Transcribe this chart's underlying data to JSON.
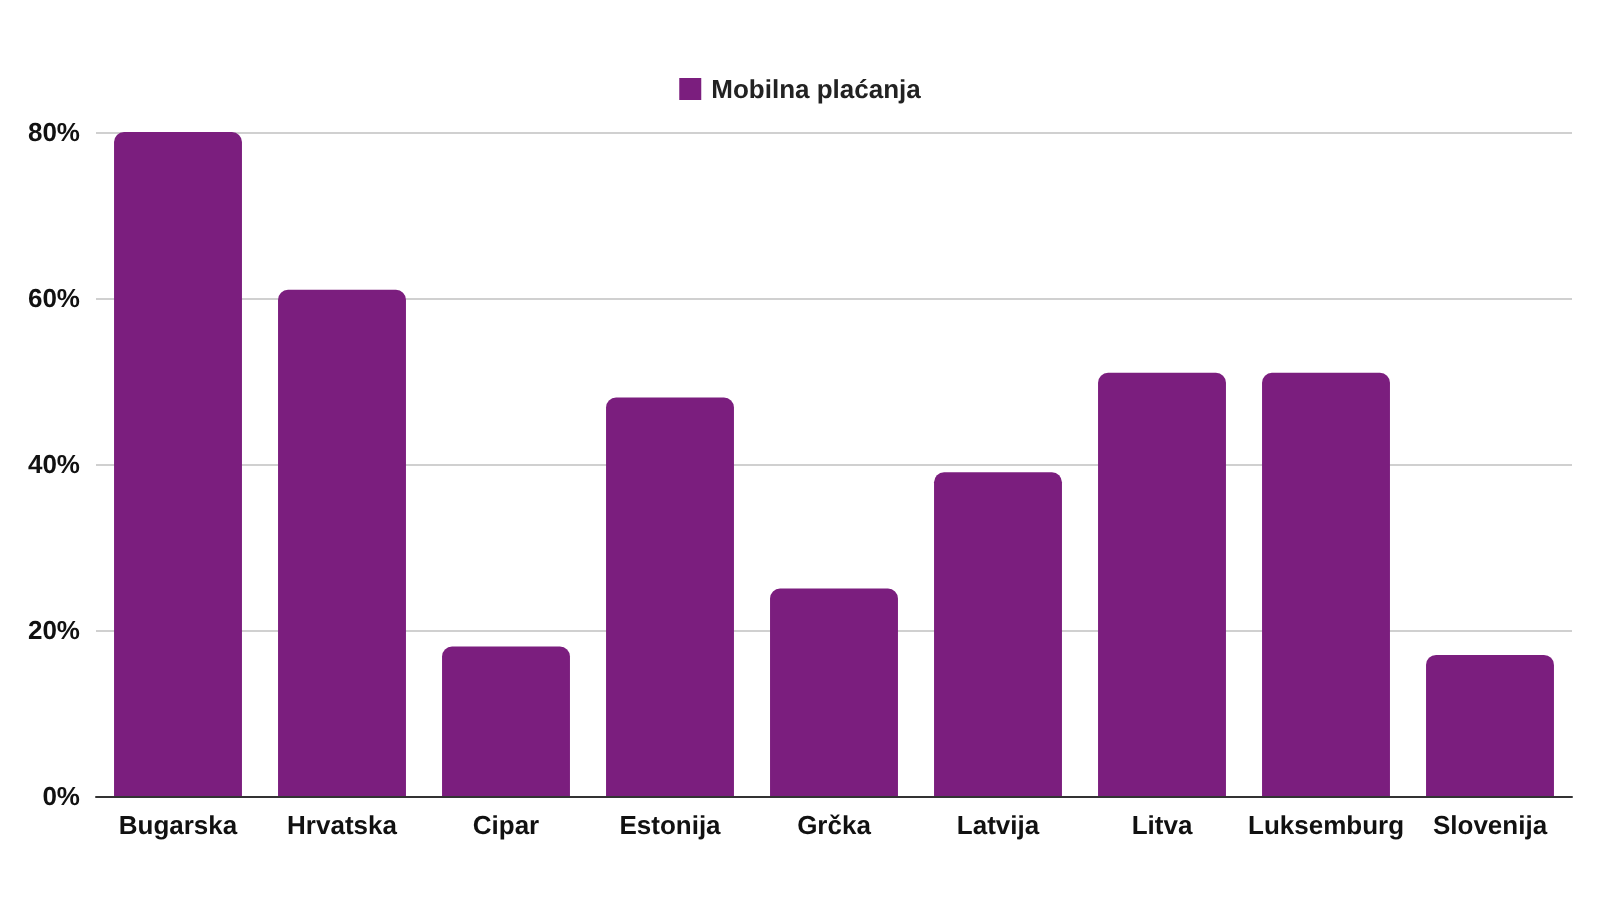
{
  "chart_data": {
    "type": "bar",
    "categories": [
      "Bugarska",
      "Hrvatska",
      "Cipar",
      "Estonija",
      "Grčka",
      "Latvija",
      "Litva",
      "Luksemburg",
      "Slovenija"
    ],
    "series": [
      {
        "name": "Mobilna plaćanja",
        "color": "#7b1e7e",
        "values": [
          80,
          61,
          18,
          48,
          25,
          39,
          51,
          51,
          17
        ]
      }
    ],
    "ylim": [
      0,
      80
    ],
    "yticks": [
      {
        "value": 0,
        "label": "0%"
      },
      {
        "value": 20,
        "label": "20%"
      },
      {
        "value": 40,
        "label": "40%"
      },
      {
        "value": 60,
        "label": "60%"
      },
      {
        "value": 80,
        "label": "80%"
      }
    ],
    "grid": "y",
    "legend": "top"
  }
}
